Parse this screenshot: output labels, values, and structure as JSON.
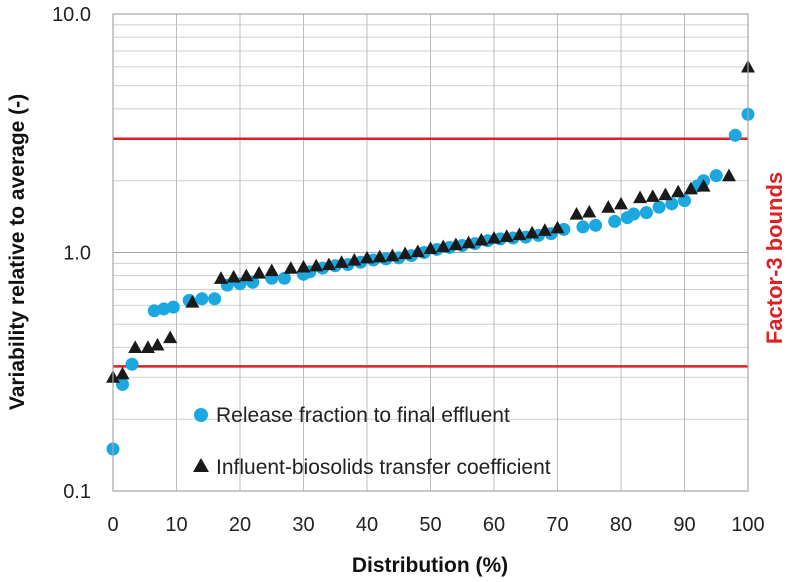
{
  "chart_data": {
    "type": "scatter",
    "xlabel": "Distribution (%)",
    "ylabel": "Variability relative to average (-)",
    "xlim": [
      0,
      100
    ],
    "ylim": [
      0.1,
      10
    ],
    "y_scale": "log",
    "x_ticks": [
      "0",
      "10",
      "20",
      "30",
      "40",
      "50",
      "60",
      "70",
      "80",
      "90",
      "100"
    ],
    "y_ticks": [
      "0.1",
      "1.0",
      "10.0"
    ],
    "grid": true,
    "legend_position": "bottom-right",
    "bounds": {
      "label": "Factor-3 bounds",
      "upper": 3.0,
      "lower": 0.333,
      "color": "#e02020"
    },
    "series": [
      {
        "name": "Release fraction to final effluent",
        "marker": "circle",
        "color": "#1ba8e0",
        "x": [
          0,
          1.5,
          3,
          6.5,
          8,
          9.5,
          12,
          14,
          16,
          18,
          20,
          22,
          25,
          27,
          30,
          31,
          33,
          35,
          37,
          39,
          41,
          43,
          45,
          47,
          49,
          51,
          53,
          55,
          57,
          59,
          61,
          63,
          65,
          67,
          69,
          71,
          74,
          76,
          79,
          81,
          82,
          84,
          86,
          88,
          90,
          92,
          93,
          95,
          98,
          100
        ],
        "y": [
          0.15,
          0.28,
          0.34,
          0.57,
          0.58,
          0.59,
          0.63,
          0.64,
          0.64,
          0.73,
          0.74,
          0.75,
          0.78,
          0.78,
          0.81,
          0.83,
          0.86,
          0.88,
          0.89,
          0.91,
          0.93,
          0.94,
          0.95,
          0.97,
          1.0,
          1.03,
          1.05,
          1.07,
          1.09,
          1.12,
          1.14,
          1.15,
          1.16,
          1.18,
          1.2,
          1.25,
          1.28,
          1.3,
          1.35,
          1.4,
          1.45,
          1.47,
          1.55,
          1.6,
          1.65,
          1.9,
          2.0,
          2.1,
          3.1,
          3.8
        ]
      },
      {
        "name": "Influent-biosolids transfer coefficient",
        "marker": "triangle",
        "color": "#1a1a1a",
        "x": [
          0,
          1.5,
          3.5,
          5.5,
          7,
          9,
          12.5,
          17,
          19,
          21,
          23,
          25,
          28,
          30,
          32,
          34,
          36,
          38,
          40,
          42,
          44,
          46,
          48,
          50,
          52,
          54,
          56,
          58,
          60,
          62,
          64,
          66,
          68,
          70,
          73,
          75,
          78,
          80,
          83,
          85,
          87,
          89,
          91,
          93,
          97,
          100
        ],
        "y": [
          0.3,
          0.31,
          0.4,
          0.4,
          0.41,
          0.44,
          0.62,
          0.78,
          0.79,
          0.8,
          0.82,
          0.84,
          0.86,
          0.87,
          0.88,
          0.89,
          0.91,
          0.93,
          0.95,
          0.96,
          0.97,
          0.99,
          1.01,
          1.04,
          1.06,
          1.08,
          1.1,
          1.13,
          1.15,
          1.17,
          1.19,
          1.21,
          1.24,
          1.27,
          1.45,
          1.48,
          1.55,
          1.6,
          1.7,
          1.72,
          1.75,
          1.8,
          1.85,
          1.9,
          2.1,
          6.0
        ]
      }
    ]
  }
}
